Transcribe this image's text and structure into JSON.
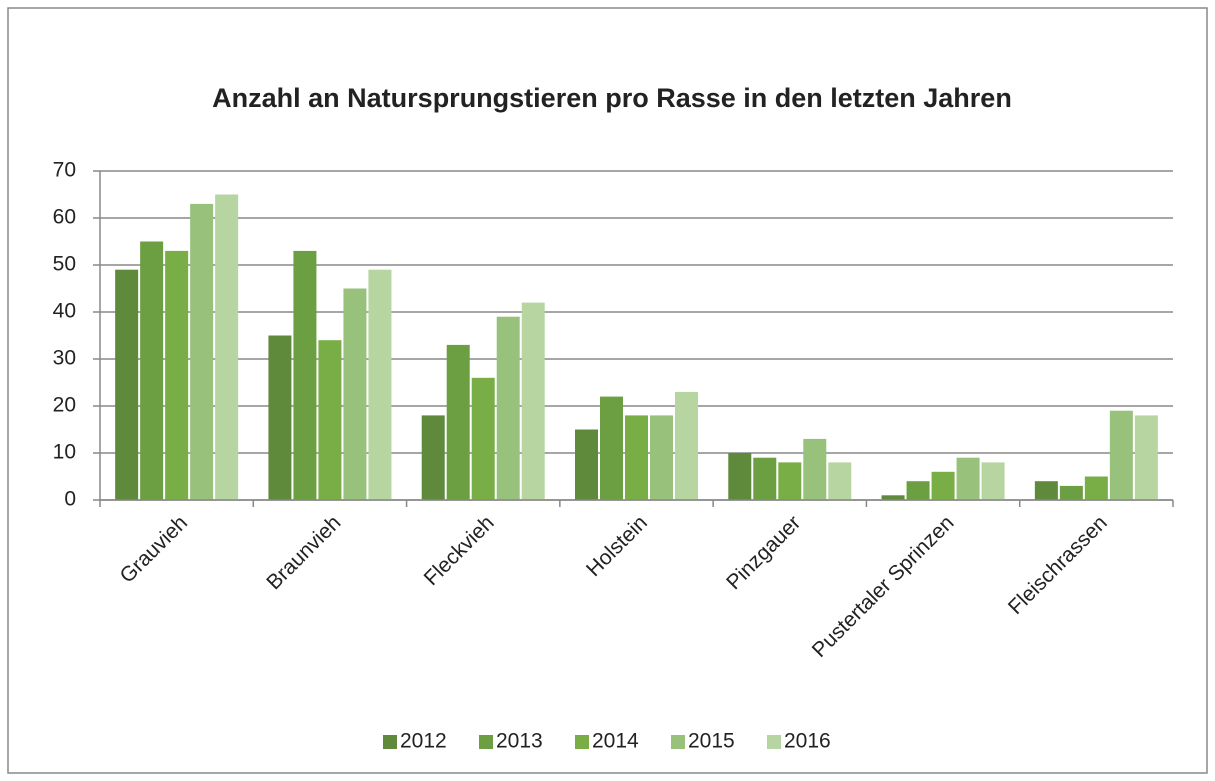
{
  "chart_data": {
    "type": "bar",
    "title": "Anzahl an Natursprungstieren pro Rasse in den letzten Jahren",
    "categories": [
      "Grauvieh",
      "Braunvieh",
      "Fleckvieh",
      "Holstein",
      "Pinzgauer",
      "Pustertaler Sprinzen",
      "Fleischrassen"
    ],
    "series": [
      {
        "name": "2012",
        "color": "#5f8a3b",
        "values": [
          49,
          35,
          18,
          15,
          10,
          1,
          4
        ]
      },
      {
        "name": "2013",
        "color": "#6b9f41",
        "values": [
          55,
          53,
          33,
          22,
          9,
          4,
          3
        ]
      },
      {
        "name": "2014",
        "color": "#79ae46",
        "values": [
          53,
          34,
          26,
          18,
          8,
          6,
          5
        ]
      },
      {
        "name": "2015",
        "color": "#98c27b",
        "values": [
          63,
          45,
          39,
          18,
          13,
          9,
          19
        ]
      },
      {
        "name": "2016",
        "color": "#b6d5a1",
        "values": [
          65,
          49,
          42,
          23,
          8,
          8,
          18
        ]
      }
    ],
    "ylim": [
      0,
      70
    ],
    "yticks": [
      0,
      10,
      20,
      30,
      40,
      50,
      60,
      70
    ],
    "grid": true,
    "legend": "bottom"
  }
}
